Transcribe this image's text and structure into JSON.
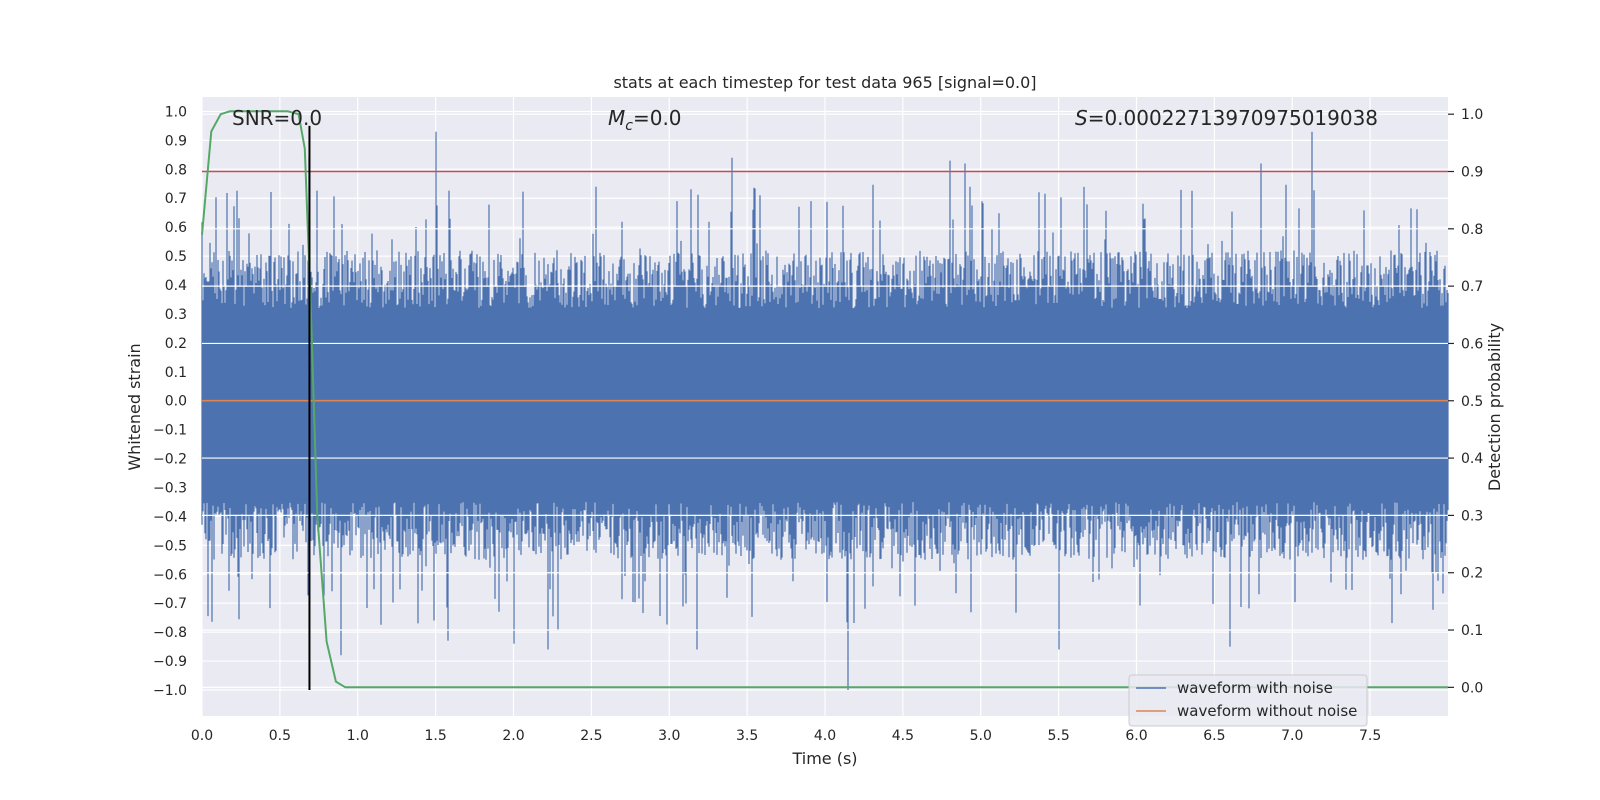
{
  "chart_data": {
    "type": "line",
    "title": "stats at each timestep for test data 965 [signal=0.0]",
    "xlabel": "Time (s)",
    "ylabel_left": "Whitened strain",
    "ylabel_right": "Detection probability",
    "xlim": [
      0.0,
      8.0
    ],
    "ylim_left": [
      -1.09,
      1.05
    ],
    "ylim_right": [
      -0.05,
      1.03
    ],
    "xticks": [
      0.0,
      0.5,
      1.0,
      1.5,
      2.0,
      2.5,
      3.0,
      3.5,
      4.0,
      4.5,
      5.0,
      5.5,
      6.0,
      6.5,
      7.0,
      7.5
    ],
    "xtick_labels": [
      "0.0",
      "0.5",
      "1.0",
      "1.5",
      "2.0",
      "2.5",
      "3.0",
      "3.5",
      "4.0",
      "4.5",
      "5.0",
      "5.5",
      "6.0",
      "6.5",
      "7.0",
      "7.5"
    ],
    "yticks_left": [
      1.0,
      0.9,
      0.8,
      0.7,
      0.6,
      0.5,
      0.4,
      0.3,
      0.2,
      0.1,
      0.0,
      -0.1,
      -0.2,
      -0.3,
      -0.4,
      -0.5,
      -0.6,
      -0.7,
      -0.8,
      -0.9,
      -1.0
    ],
    "ytick_labels_left": [
      "1.0",
      "0.9",
      "0.8",
      "0.7",
      "0.6",
      "0.5",
      "0.4",
      "0.3",
      "0.2",
      "0.1",
      "0.0",
      "−0.1",
      "−0.2",
      "−0.3",
      "−0.4",
      "−0.5",
      "−0.6",
      "−0.7",
      "−0.8",
      "−0.9",
      "−1.0"
    ],
    "yticks_right": [
      0.0,
      0.1,
      0.2,
      0.3,
      0.4,
      0.5,
      0.6,
      0.7,
      0.8,
      0.9,
      1.0
    ],
    "ytick_labels_right": [
      "0.0",
      "0.1",
      "0.2",
      "0.3",
      "0.4",
      "0.5",
      "0.6",
      "0.7",
      "0.8",
      "0.9",
      "1.0"
    ],
    "annotations": {
      "snr": "SNR=0.0",
      "mc_symbol": "M",
      "mc_subscript": "c",
      "mc_value": "=0.0",
      "s_symbol": "S",
      "s_value": "=0.00022713970975019038"
    },
    "series": [
      {
        "name": "waveform with noise",
        "axis": "left",
        "color": "#4c72b0",
        "description": "noise-like strain signal, dense band roughly between -0.45 and 0.45 with spikes",
        "envelope_upper_typical": 0.42,
        "envelope_lower_typical": -0.45,
        "max_spike": 0.93,
        "min_spike": -1.0,
        "min_spike_time": 4.15
      },
      {
        "name": "waveform without noise",
        "axis": "left",
        "color": "#dd8452",
        "x": [
          0.0,
          8.0
        ],
        "y": [
          0.0,
          0.0
        ]
      },
      {
        "name": "Detection probability",
        "axis": "right",
        "color": "#55a868",
        "x": [
          0.0,
          0.06,
          0.12,
          0.18,
          0.25,
          0.4,
          0.55,
          0.62,
          0.66,
          0.7,
          0.74,
          0.8,
          0.86,
          0.92,
          1.0,
          8.0
        ],
        "y": [
          0.79,
          0.97,
          1.0,
          1.005,
          1.005,
          1.005,
          1.005,
          1.0,
          0.94,
          0.65,
          0.3,
          0.08,
          0.01,
          0.0,
          0.0,
          0.0
        ]
      }
    ],
    "reference_lines": [
      {
        "name": "threshold",
        "axis": "right",
        "orientation": "horizontal",
        "value": 0.9,
        "color": "#c44e52"
      },
      {
        "name": "event-marker",
        "orientation": "vertical",
        "x": 0.69,
        "y_from": -1.0,
        "y_to": 0.95,
        "color": "#000000"
      }
    ],
    "legend": {
      "position": "lower-right",
      "entries": [
        "waveform with noise",
        "waveform without noise"
      ]
    },
    "grid": true,
    "style": {
      "plot_background": "#eaeaf2",
      "grid_color": "#ffffff",
      "text_color": "#262626"
    }
  }
}
